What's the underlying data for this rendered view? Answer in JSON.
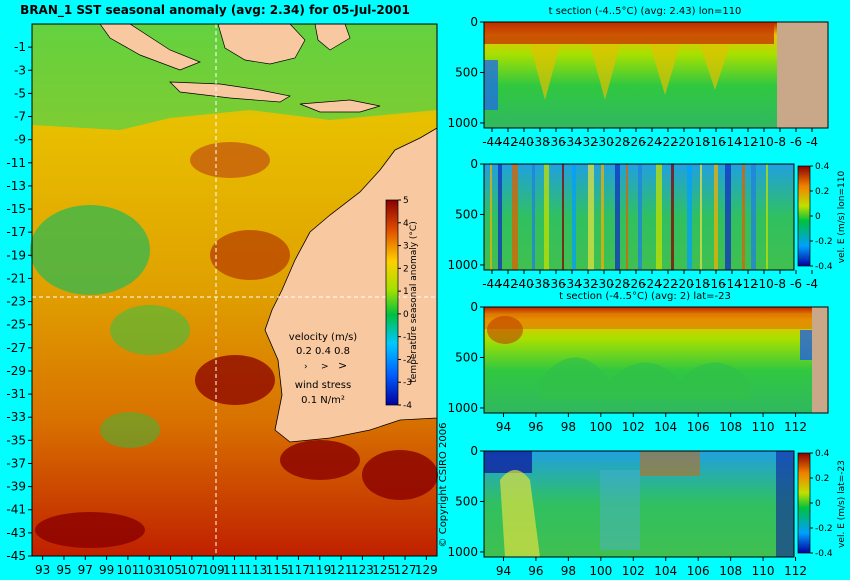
{
  "colors": {
    "background": "#00ffff",
    "land": "#f8c8a0",
    "land_tan": "#c8a888"
  },
  "chart_data": [
    {
      "type": "heatmap",
      "title": "BRAN_1  SST seasonal anomaly  (avg: 2.34)  for 05-Jul-2001",
      "x_ticks": [
        "93",
        "95",
        "97",
        "99",
        "101",
        "103",
        "105",
        "107",
        "109",
        "111",
        "113",
        "115",
        "117",
        "119",
        "121",
        "123",
        "125",
        "127",
        "129"
      ],
      "y_ticks": [
        "-1",
        "-3",
        "-5",
        "-7",
        "-9",
        "-11",
        "-13",
        "-15",
        "-17",
        "-19",
        "-21",
        "-23",
        "-25",
        "-27",
        "-29",
        "-31",
        "-33",
        "-35",
        "-37",
        "-39",
        "-41",
        "-43",
        "-45"
      ],
      "xlim": [
        92,
        130
      ],
      "ylim": [
        -45,
        1
      ],
      "colorbar": {
        "label": "temperature seasonal anomaly (°C)",
        "ticks": [
          "5",
          "4",
          "3",
          "2",
          "1",
          "0",
          "-1",
          "-2",
          "-3",
          "-4"
        ],
        "range": [
          -4,
          5
        ]
      },
      "legend": {
        "velocity_label": "velocity (m/s)",
        "velocity_scale": "0.2 0.4 0.8",
        "wind_label": "wind stress",
        "wind_scale": "0.1 N/m²"
      }
    },
    {
      "type": "heatmap",
      "title": "t section (-4..5°C) (avg: 2.43) lon=110",
      "x_ticks": [
        "-44",
        "-42",
        "-40",
        "-38",
        "-36",
        "-34",
        "-32",
        "-30",
        "-28",
        "-26",
        "-24",
        "-22",
        "-20",
        "-18",
        "-16",
        "-14",
        "-12",
        "-10",
        "-8",
        "-6",
        "-4"
      ],
      "y_ticks": [
        "0",
        "500",
        "1000"
      ],
      "xlim": [
        -45,
        -2
      ],
      "ylim": [
        1050,
        0
      ]
    },
    {
      "type": "heatmap",
      "title": "",
      "x_ticks": [
        "-44",
        "-42",
        "-40",
        "-38",
        "-36",
        "-34",
        "-32",
        "-30",
        "-28",
        "-26",
        "-24",
        "-22",
        "-20",
        "-18",
        "-16",
        "-14",
        "-12",
        "-10",
        "-8",
        "-6",
        "-4"
      ],
      "y_ticks": [
        "0",
        "500",
        "1000"
      ],
      "xlim": [
        -45,
        -2
      ],
      "ylim": [
        1050,
        0
      ],
      "colorbar": {
        "label": "vel. E (m/s) lon=110",
        "ticks": [
          "0.4",
          "0.2",
          "0",
          "-0.2",
          "-0.4"
        ],
        "range": [
          -0.4,
          0.4
        ]
      }
    },
    {
      "type": "heatmap",
      "title": "t section (-4..5°C) (avg: 2) lat=-23",
      "x_ticks": [
        "94",
        "96",
        "98",
        "100",
        "102",
        "104",
        "106",
        "108",
        "110",
        "112"
      ],
      "y_ticks": [
        "0",
        "500",
        "1000"
      ],
      "xlim": [
        92.8,
        114
      ],
      "ylim": [
        1050,
        0
      ]
    },
    {
      "type": "heatmap",
      "title": "",
      "x_ticks": [
        "94",
        "96",
        "98",
        "100",
        "102",
        "104",
        "106",
        "108",
        "110",
        "112"
      ],
      "y_ticks": [
        "0",
        "500",
        "1000"
      ],
      "xlim": [
        92.8,
        114
      ],
      "ylim": [
        1050,
        0
      ],
      "colorbar": {
        "label": "vel. E (m/s) lat=-23",
        "ticks": [
          "0.4",
          "0.2",
          "0",
          "-0.2",
          "-0.4"
        ],
        "range": [
          -0.4,
          0.4
        ]
      }
    }
  ],
  "copyright": "© Copyright CSIRO 2006"
}
